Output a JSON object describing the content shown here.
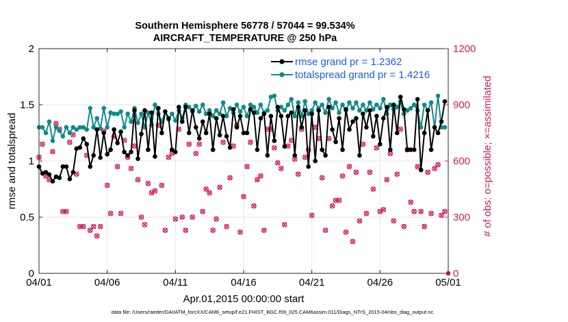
{
  "chart_data": {
    "type": "line",
    "title": "Southern Hemisphere 56778 / 57044 = 99.534%",
    "subtitle": "AIRCRAFT_TEMPERATURE @ 250 hPa",
    "xlabel": "Apr.01,2015 00:00:00 start",
    "ylabel": "rmse and totalspread",
    "ylabel_right": "# of obs: o=possible; ×=assimilated",
    "xlim": [
      0,
      30
    ],
    "ylim": [
      0,
      2
    ],
    "ylim_right": [
      0,
      1200
    ],
    "x_ticks": [
      0,
      5,
      10,
      15,
      20,
      25,
      30
    ],
    "x_tick_labels": [
      "04/01",
      "04/06",
      "04/11",
      "04/16",
      "04/21",
      "04/26",
      "05/01"
    ],
    "y_ticks": [
      0,
      0.5,
      1,
      1.5,
      2
    ],
    "y_tick_labels": [
      "0",
      "0.5",
      "1",
      "1.5",
      "2"
    ],
    "y_right_ticks": [
      0,
      300,
      600,
      900,
      1200
    ],
    "y_right_tick_labels": [
      "0",
      "300",
      "600",
      "900",
      "1200"
    ],
    "grid": true,
    "legend_position": "top-right",
    "footnote": "data file: /Users/raeder/DAI/ATM_forcXX/CAM6_setup/f.e21.FHIST_BGC.f09_025.CAM6assim.011/Diags_NTrS_2015-04/obs_diag_output.nc",
    "series": [
      {
        "name": "rmse grand pr = 1.2362",
        "color": "#000000",
        "marker": "filled-circle",
        "axis": "left",
        "x": [
          0.0,
          0.25,
          0.5,
          0.75,
          1.0,
          1.25,
          1.5,
          1.75,
          2.0,
          2.25,
          2.5,
          2.75,
          3.0,
          3.25,
          3.5,
          3.75,
          4.0,
          4.25,
          4.5,
          4.75,
          5.0,
          5.25,
          5.5,
          5.75,
          6.0,
          6.25,
          6.5,
          6.75,
          7.0,
          7.25,
          7.5,
          7.75,
          8.0,
          8.25,
          8.5,
          8.75,
          9.0,
          9.25,
          9.5,
          9.75,
          10.0,
          10.25,
          10.5,
          10.75,
          11.0,
          11.25,
          11.5,
          11.75,
          12.0,
          12.25,
          12.5,
          12.75,
          13.0,
          13.25,
          13.5,
          13.75,
          14.0,
          14.25,
          14.5,
          14.75,
          15.0,
          15.25,
          15.5,
          15.75,
          16.0,
          16.25,
          16.5,
          16.75,
          17.0,
          17.25,
          17.5,
          17.75,
          18.0,
          18.25,
          18.5,
          18.75,
          19.0,
          19.25,
          19.5,
          19.75,
          20.0,
          20.25,
          20.5,
          20.75,
          21.0,
          21.25,
          21.5,
          21.75,
          22.0,
          22.25,
          22.5,
          22.75,
          23.0,
          23.25,
          23.5,
          23.75,
          24.0,
          24.25,
          24.5,
          24.75,
          25.0,
          25.25,
          25.5,
          25.75,
          26.0,
          26.25,
          26.5,
          26.75,
          27.0,
          27.25,
          27.5,
          27.75,
          28.0,
          28.25,
          28.5,
          28.75,
          29.0,
          29.25,
          29.5,
          29.75
        ],
        "y": [
          0.95,
          0.89,
          0.9,
          0.88,
          0.82,
          0.86,
          0.85,
          0.95,
          0.95,
          0.84,
          0.9,
          1.11,
          1.12,
          1.2,
          1.15,
          0.95,
          1.05,
          1.28,
          1.03,
          1.25,
          1.06,
          1.1,
          1.28,
          1.16,
          1.26,
          1.08,
          1.05,
          1.08,
          1.45,
          1.02,
          1.24,
          1.45,
          1.1,
          1.43,
          1.04,
          1.47,
          1.25,
          1.44,
          1.38,
          1.1,
          1.08,
          1.48,
          1.35,
          1.48,
          1.25,
          1.45,
          1.3,
          1.2,
          1.35,
          1.25,
          1.42,
          1.1,
          1.38,
          1.23,
          1.4,
          1.22,
          1.12,
          1.46,
          1.3,
          1.4,
          1.25,
          1.25,
          1.46,
          1.43,
          1.1,
          1.38,
          1.42,
          1.05,
          1.4,
          1.18,
          1.48,
          1.4,
          1.13,
          1.4,
          1.43,
          1.05,
          1.48,
          1.3,
          1.45,
          0.95,
          1.42,
          1.0,
          1.45,
          1.1,
          1.05,
          1.48,
          1.28,
          1.17,
          1.38,
          1.1,
          1.46,
          1.28,
          1.35,
          1.38,
          1.05,
          1.42,
          1.3,
          1.45,
          1.22,
          1.4,
          1.15,
          1.38,
          1.48,
          1.1,
          1.5,
          1.25,
          1.57,
          1.46,
          1.1,
          1.1,
          1.1,
          1.55,
          0.92,
          1.25,
          1.45,
          1.1,
          1.3,
          1.25,
          1.35,
          1.53
        ]
      },
      {
        "name": "totalspread grand pr = 1.4216",
        "color": "#0e8a8a",
        "marker": "filled-circle",
        "axis": "left",
        "x": [
          0.0,
          0.25,
          0.5,
          0.75,
          1.0,
          1.25,
          1.5,
          1.75,
          2.0,
          2.25,
          2.5,
          2.75,
          3.0,
          3.25,
          3.5,
          3.75,
          4.0,
          4.25,
          4.5,
          4.75,
          5.0,
          5.25,
          5.5,
          5.75,
          6.0,
          6.25,
          6.5,
          6.75,
          7.0,
          7.25,
          7.5,
          7.75,
          8.0,
          8.25,
          8.5,
          8.75,
          9.0,
          9.25,
          9.5,
          9.75,
          10.0,
          10.25,
          10.5,
          10.75,
          11.0,
          11.25,
          11.5,
          11.75,
          12.0,
          12.25,
          12.5,
          12.75,
          13.0,
          13.25,
          13.5,
          13.75,
          14.0,
          14.25,
          14.5,
          14.75,
          15.0,
          15.25,
          15.5,
          15.75,
          16.0,
          16.25,
          16.5,
          16.75,
          17.0,
          17.25,
          17.5,
          17.75,
          18.0,
          18.25,
          18.5,
          18.75,
          19.0,
          19.25,
          19.5,
          19.75,
          20.0,
          20.25,
          20.5,
          20.75,
          21.0,
          21.25,
          21.5,
          21.75,
          22.0,
          22.25,
          22.5,
          22.75,
          23.0,
          23.25,
          23.5,
          23.75,
          24.0,
          24.25,
          24.5,
          24.75,
          25.0,
          25.25,
          25.5,
          25.75,
          26.0,
          26.25,
          26.5,
          26.75,
          27.0,
          27.25,
          27.5,
          27.75,
          28.0,
          28.25,
          28.5,
          28.75,
          29.0,
          29.25,
          29.5,
          29.75
        ],
        "y": [
          1.3,
          1.3,
          1.25,
          1.35,
          1.18,
          1.3,
          1.27,
          1.22,
          1.3,
          1.25,
          1.3,
          1.28,
          1.3,
          1.3,
          1.28,
          1.47,
          1.3,
          1.38,
          1.29,
          1.47,
          1.3,
          1.43,
          1.42,
          1.42,
          1.44,
          1.3,
          1.42,
          1.35,
          1.47,
          1.34,
          1.42,
          1.3,
          1.43,
          1.32,
          1.5,
          1.42,
          1.35,
          1.44,
          1.37,
          1.42,
          1.36,
          1.45,
          1.38,
          1.5,
          1.48,
          1.44,
          1.49,
          1.44,
          1.5,
          1.42,
          1.45,
          1.4,
          1.45,
          1.42,
          1.52,
          1.4,
          1.47,
          1.43,
          1.5,
          1.44,
          1.48,
          1.4,
          1.5,
          1.48,
          1.43,
          1.5,
          1.43,
          1.45,
          1.57,
          1.58,
          1.45,
          1.48,
          1.45,
          1.5,
          1.55,
          1.4,
          1.52,
          1.4,
          1.53,
          1.42,
          1.45,
          1.52,
          1.47,
          1.5,
          1.43,
          1.55,
          1.47,
          1.52,
          1.43,
          1.5,
          1.45,
          1.52,
          1.47,
          1.52,
          1.45,
          1.5,
          1.45,
          1.52,
          1.46,
          1.5,
          1.47,
          1.55,
          1.42,
          1.5,
          1.46,
          1.48,
          1.53,
          1.42,
          1.45,
          1.47,
          1.5,
          1.45,
          1.3,
          1.5,
          1.45,
          1.52,
          1.3,
          1.58,
          1.3,
          1.3
        ]
      },
      {
        "name": "possible obs count",
        "color": "#d11a5b",
        "marker": "open-circle",
        "axis": "right",
        "x": [
          0.0,
          0.25,
          0.5,
          0.75,
          1.0,
          1.25,
          1.5,
          1.75,
          2.0,
          2.25,
          2.5,
          2.75,
          3.0,
          3.25,
          3.5,
          3.75,
          4.0,
          4.25,
          4.5,
          4.75,
          5.0,
          5.25,
          5.5,
          5.75,
          6.0,
          6.25,
          6.5,
          6.75,
          7.0,
          7.25,
          7.5,
          7.75,
          8.0,
          8.25,
          8.5,
          8.75,
          9.0,
          9.25,
          9.5,
          9.75,
          10.0,
          10.25,
          10.5,
          10.75,
          11.0,
          11.25,
          11.5,
          11.75,
          12.0,
          12.25,
          12.5,
          12.75,
          13.0,
          13.25,
          13.5,
          13.75,
          14.0,
          14.25,
          14.5,
          14.75,
          15.0,
          15.25,
          15.5,
          15.75,
          16.0,
          16.25,
          16.5,
          16.75,
          17.0,
          17.25,
          17.5,
          17.75,
          18.0,
          18.25,
          18.5,
          18.75,
          19.0,
          19.25,
          19.5,
          19.75,
          20.0,
          20.25,
          20.5,
          20.75,
          21.0,
          21.25,
          21.5,
          21.75,
          22.0,
          22.25,
          22.5,
          22.75,
          23.0,
          23.25,
          23.5,
          23.75,
          24.0,
          24.25,
          24.5,
          24.75,
          25.0,
          25.25,
          25.5,
          25.75,
          26.0,
          26.25,
          26.5,
          26.75,
          27.0,
          27.25,
          27.5,
          27.75,
          28.0,
          28.25,
          28.5,
          28.75,
          29.0,
          29.25,
          29.5,
          29.75
        ],
        "y": [
          620,
          690,
          520,
          500,
          650,
          800,
          770,
          330,
          330,
          700,
          740,
          530,
          250,
          250,
          630,
          230,
          250,
          200,
          250,
          760,
          470,
          320,
          730,
          570,
          320,
          710,
          620,
          560,
          680,
          500,
          300,
          260,
          480,
          430,
          440,
          790,
          470,
          230,
          620,
          640,
          290,
          770,
          300,
          230,
          690,
          300,
          640,
          690,
          330,
          450,
          430,
          230,
          290,
          460,
          700,
          250,
          510,
          680,
          790,
          220,
          410,
          570,
          700,
          360,
          500,
          520,
          230,
          770,
          770,
          670,
          590,
          560,
          260,
          680,
          710,
          610,
          530,
          770,
          620,
          660,
          310,
          780,
          720,
          510,
          230,
          720,
          360,
          390,
          390,
          520,
          220,
          570,
          170,
          540,
          280,
          690,
          320,
          540,
          450,
          670,
          330,
          340,
          500,
          640,
          280,
          530,
          770,
          250,
          660,
          380,
          330,
          570,
          330,
          250,
          540,
          320,
          560,
          580,
          310,
          330
        ]
      },
      {
        "name": "assimilated obs count",
        "color": "#d11a5b",
        "marker": "x",
        "axis": "right",
        "x": [
          0.0,
          0.25,
          0.5,
          0.75,
          1.0,
          1.25,
          1.5,
          1.75,
          2.0,
          2.25,
          2.5,
          2.75,
          3.0,
          3.25,
          3.5,
          3.75,
          4.0,
          4.25,
          4.5,
          4.75,
          5.0,
          5.25,
          5.5,
          5.75,
          6.0,
          6.25,
          6.5,
          6.75,
          7.0,
          7.25,
          7.5,
          7.75,
          8.0,
          8.25,
          8.5,
          8.75,
          9.0,
          9.25,
          9.5,
          9.75,
          10.0,
          10.25,
          10.5,
          10.75,
          11.0,
          11.25,
          11.5,
          11.75,
          12.0,
          12.25,
          12.5,
          12.75,
          13.0,
          13.25,
          13.5,
          13.75,
          14.0,
          14.25,
          14.5,
          14.75,
          15.0,
          15.25,
          15.5,
          15.75,
          16.0,
          16.25,
          16.5,
          16.75,
          17.0,
          17.25,
          17.5,
          17.75,
          18.0,
          18.25,
          18.5,
          18.75,
          19.0,
          19.25,
          19.5,
          19.75,
          20.0,
          20.25,
          20.5,
          20.75,
          21.0,
          21.25,
          21.5,
          21.75,
          22.0,
          22.25,
          22.5,
          22.75,
          23.0,
          23.25,
          23.5,
          23.75,
          24.0,
          24.25,
          24.5,
          24.75,
          25.0,
          25.25,
          25.5,
          25.75,
          26.0,
          26.25,
          26.5,
          26.75,
          27.0,
          27.25,
          27.5,
          27.75,
          28.0,
          28.25,
          28.5,
          28.75,
          29.0,
          29.25,
          29.5,
          29.75
        ],
        "y": [
          620,
          690,
          520,
          500,
          650,
          800,
          770,
          330,
          330,
          700,
          740,
          530,
          250,
          250,
          630,
          230,
          250,
          200,
          250,
          760,
          470,
          320,
          730,
          570,
          320,
          710,
          620,
          560,
          680,
          500,
          300,
          260,
          480,
          430,
          440,
          790,
          470,
          230,
          620,
          640,
          290,
          770,
          300,
          230,
          690,
          300,
          640,
          690,
          330,
          450,
          430,
          230,
          290,
          460,
          700,
          250,
          510,
          680,
          790,
          220,
          410,
          570,
          700,
          360,
          500,
          520,
          230,
          770,
          770,
          670,
          590,
          560,
          260,
          680,
          710,
          610,
          530,
          770,
          620,
          660,
          310,
          780,
          720,
          510,
          230,
          720,
          360,
          390,
          390,
          520,
          220,
          570,
          170,
          540,
          280,
          690,
          320,
          540,
          450,
          670,
          330,
          340,
          500,
          640,
          280,
          530,
          770,
          250,
          660,
          380,
          330,
          570,
          330,
          250,
          540,
          320,
          560,
          580,
          310,
          330
        ]
      }
    ]
  }
}
